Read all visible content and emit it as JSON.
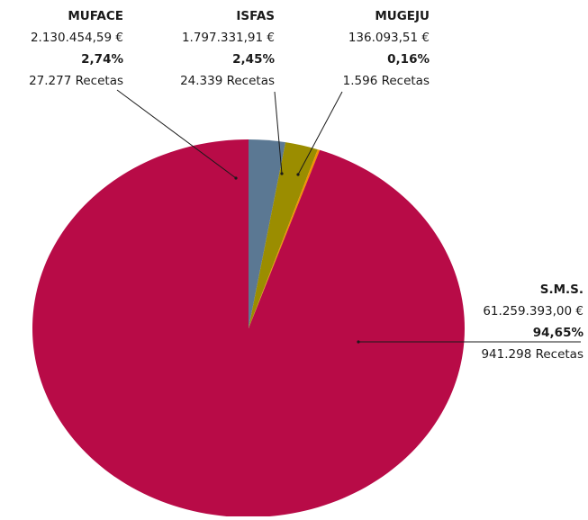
{
  "chart_data": {
    "type": "pie",
    "categories": [
      "MUFACE",
      "ISFAS",
      "MUGEJU",
      "S.M.S."
    ],
    "values": [
      2.74,
      2.45,
      0.16,
      94.65
    ],
    "value_labels": [
      "2,74%",
      "2,45%",
      "0,16%",
      "94,65%"
    ],
    "amounts": [
      "2.130.454,59 €",
      "1.797.331,91 €",
      "136.093,51 €",
      "61.259.393,00 €"
    ],
    "recetas": [
      "27.277 Recetas",
      "24.339 Recetas",
      "1.596 Recetas",
      "941.298 Recetas"
    ],
    "colors": [
      "#5b7893",
      "#9b8d00",
      "#f39200",
      "#b80b47"
    ]
  }
}
